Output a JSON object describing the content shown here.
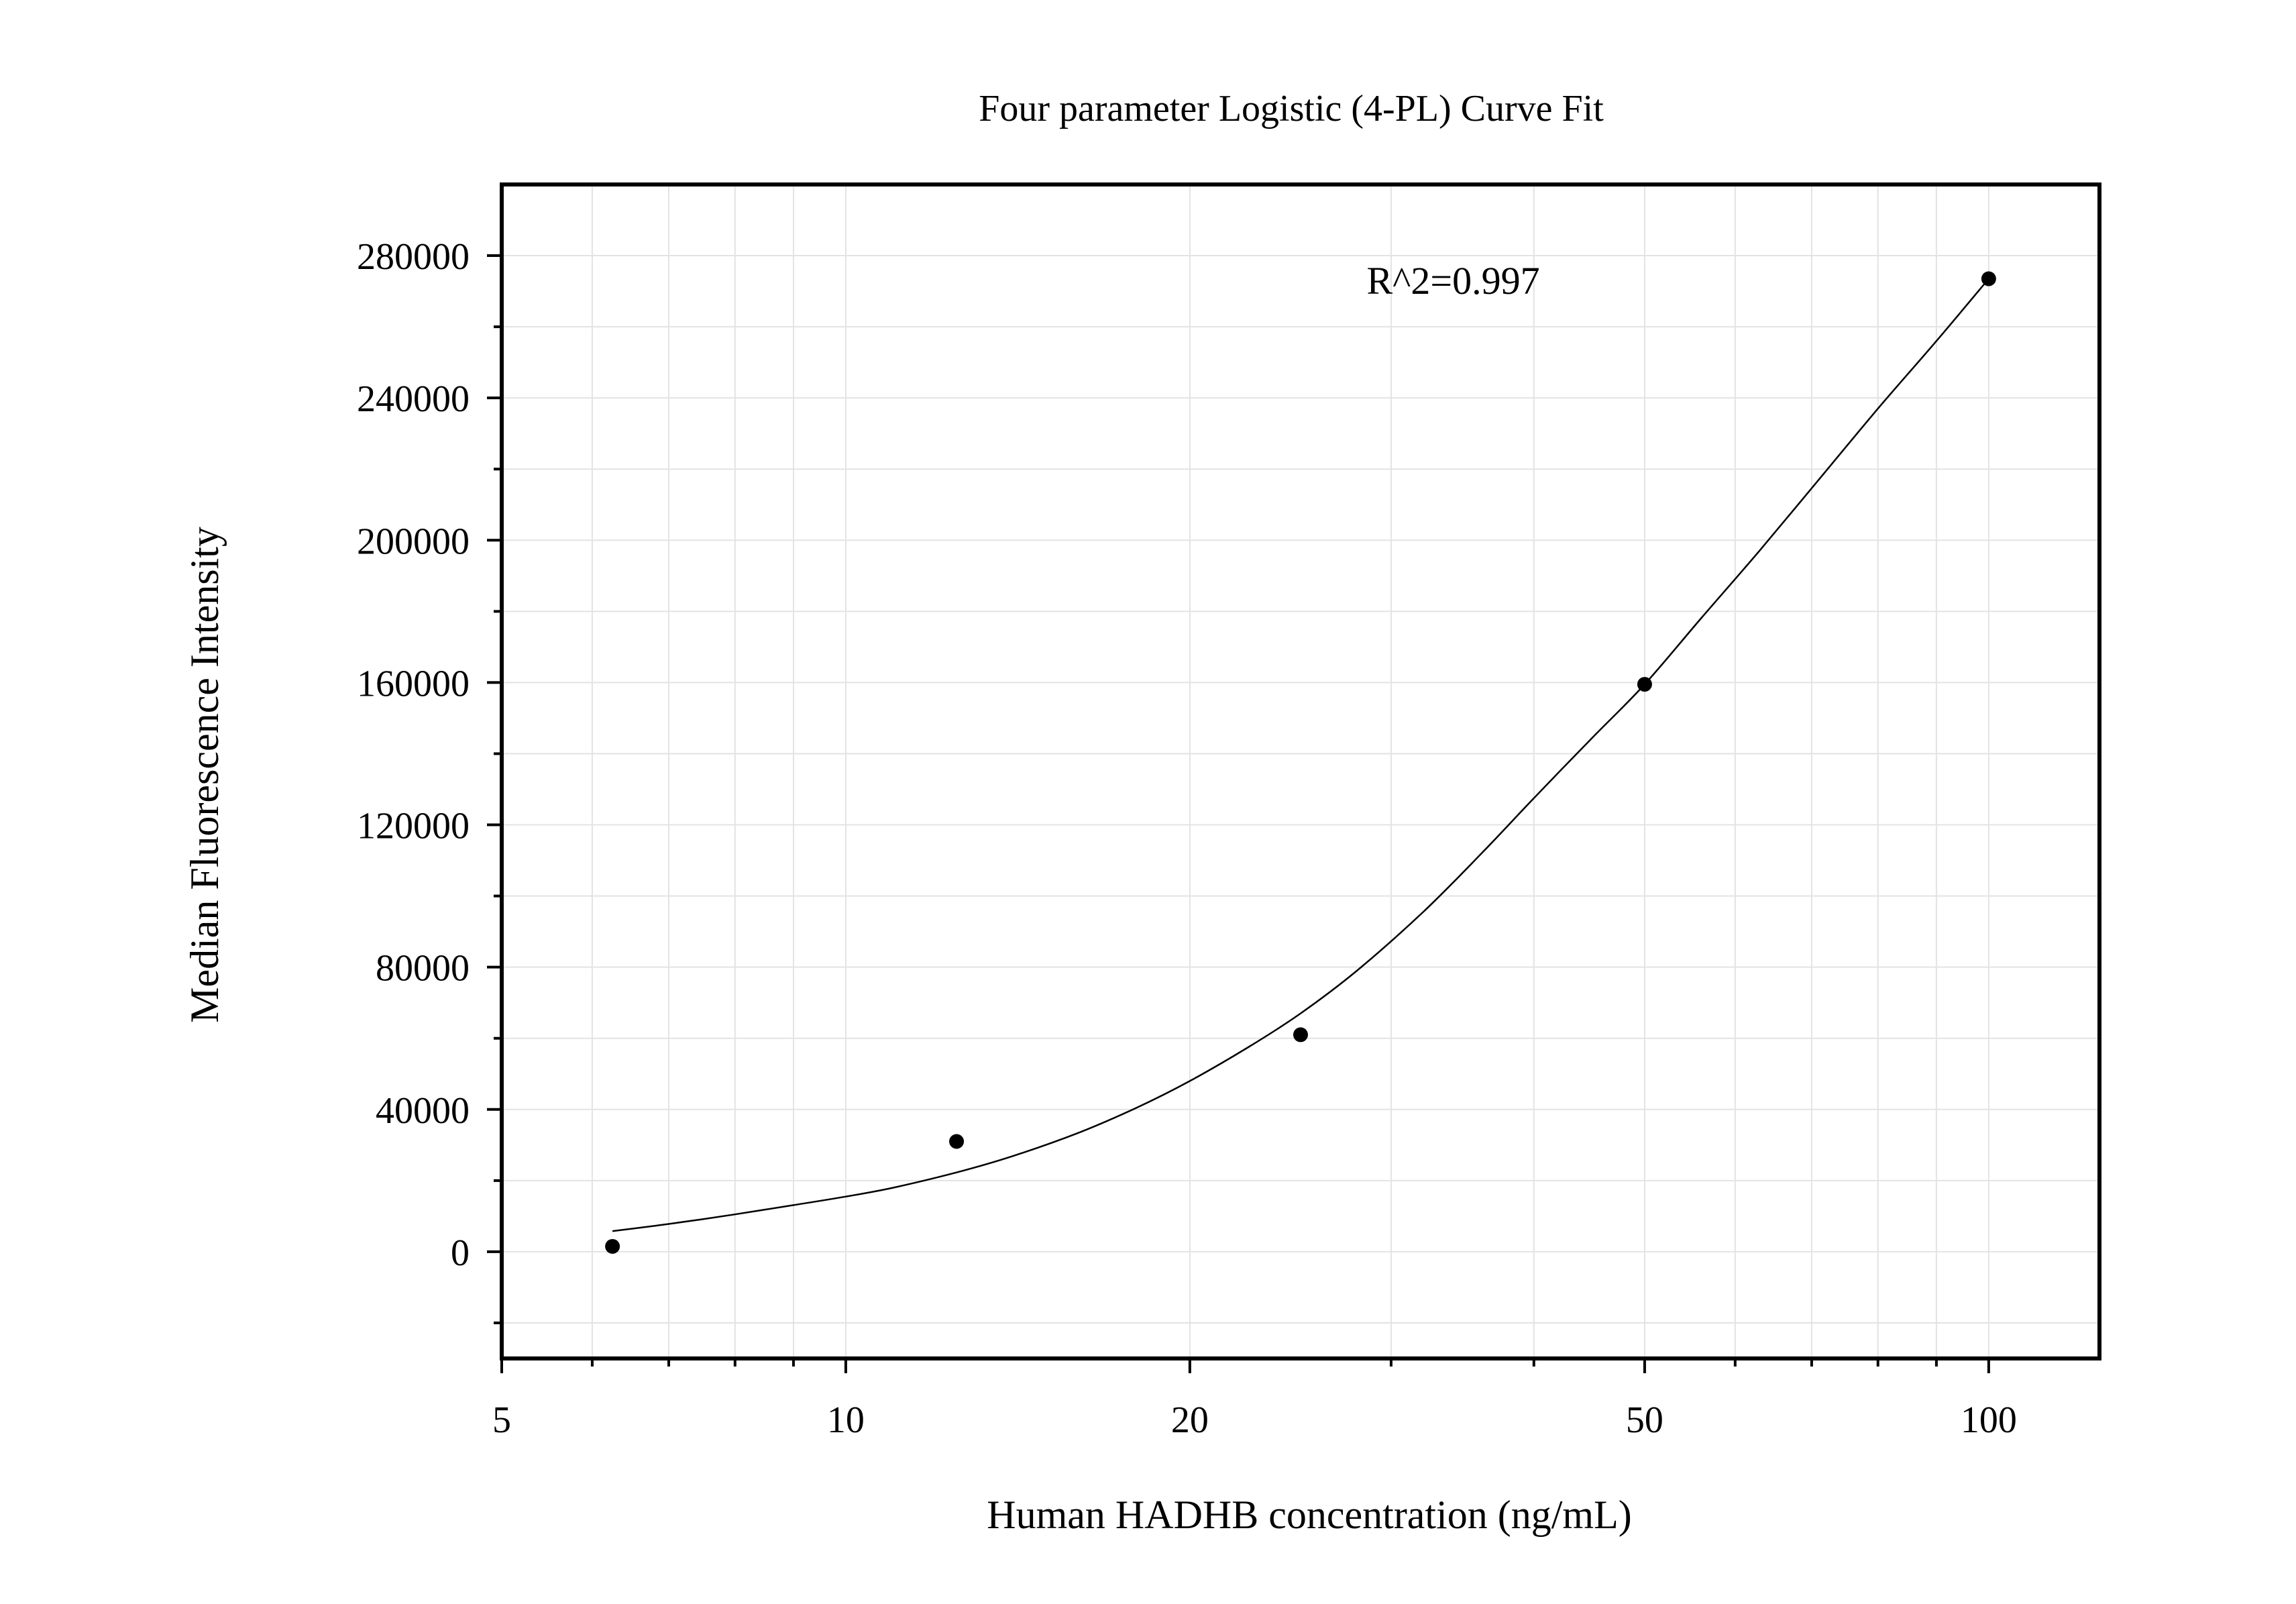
{
  "chart_data": {
    "type": "scatter",
    "title": "Four parameter Logistic (4-PL) Curve Fit",
    "xlabel": "Human HADHB concentration (ng/mL)",
    "ylabel": "Median Fluorescence Intensity",
    "xscale": "log",
    "xlim": [
      5,
      125
    ],
    "ylim": [
      -30000,
      300000
    ],
    "x_ticks": [
      5,
      10,
      20,
      50,
      100
    ],
    "x_tick_labels": [
      "5",
      "10",
      "20",
      "50",
      "100"
    ],
    "y_ticks": [
      0,
      40000,
      80000,
      120000,
      160000,
      200000,
      240000,
      280000
    ],
    "y_tick_labels": [
      "0",
      "40000",
      "80000",
      "120000",
      "160000",
      "200000",
      "240000",
      "280000"
    ],
    "grid": true,
    "series": [
      {
        "points": [
          {
            "x": 6.25,
            "y": 1500
          },
          {
            "x": 12.5,
            "y": 31000
          },
          {
            "x": 25,
            "y": 61000
          },
          {
            "x": 50,
            "y": 159500
          },
          {
            "x": 100,
            "y": 273500
          }
        ]
      }
    ],
    "fit_curve": {
      "x": [
        6.25,
        7,
        8,
        9,
        10,
        11,
        12.5,
        14,
        16,
        18,
        20,
        22.5,
        25,
        28,
        32,
        36,
        40,
        45,
        50,
        56,
        63,
        71,
        80,
        90,
        100
      ],
      "y": [
        5800,
        7800,
        10500,
        13100,
        15500,
        18000,
        22300,
        26900,
        33500,
        40600,
        48000,
        57500,
        67000,
        79000,
        95500,
        112000,
        127500,
        144500,
        159500,
        178000,
        197000,
        217000,
        237000,
        256000,
        273500
      ]
    },
    "annotations": [
      {
        "text": "R^2=0.997",
        "x": 34,
        "y": 273000
      }
    ]
  }
}
